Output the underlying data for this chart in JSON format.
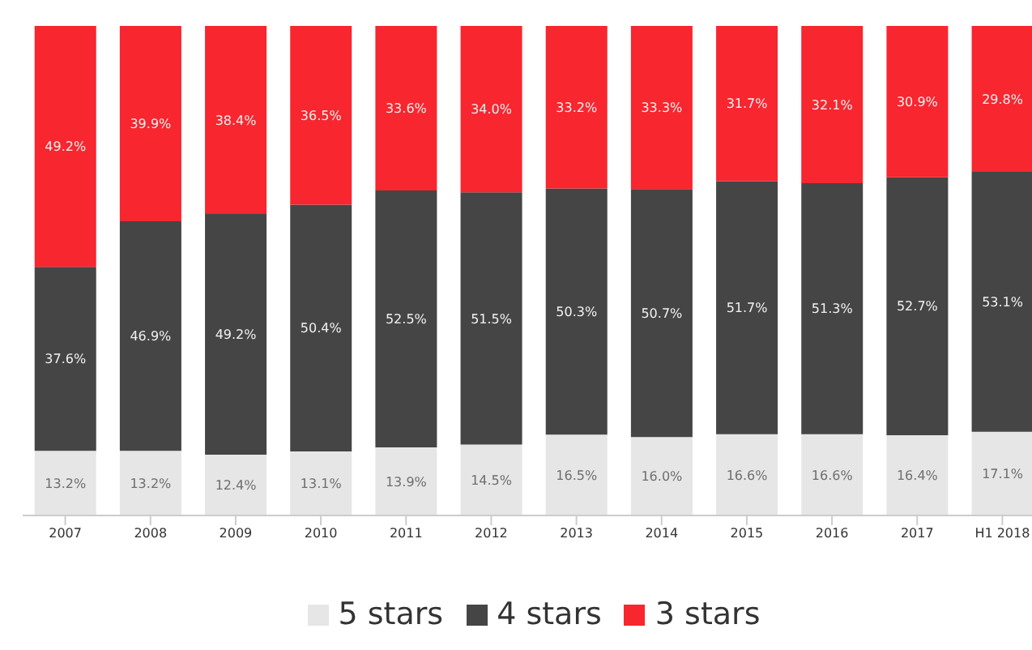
{
  "chart_data": {
    "type": "bar",
    "stacked": true,
    "categories": [
      "2007",
      "2008",
      "2009",
      "2010",
      "2011",
      "2012",
      "2013",
      "2014",
      "2015",
      "2016",
      "2017",
      "H1 2018"
    ],
    "series": [
      {
        "name": "5 stars",
        "color": "#e6e6e6",
        "values": [
          13.2,
          13.2,
          12.4,
          13.1,
          13.9,
          14.5,
          16.5,
          16.0,
          16.6,
          16.6,
          16.4,
          17.1
        ],
        "value_labels": [
          "13.2%",
          "13.2%",
          "12.4%",
          "13.1%",
          "13.9%",
          "14.5%",
          "16.5%",
          "16.0%",
          "16.6%",
          "16.6%",
          "16.4%",
          "17.1%"
        ]
      },
      {
        "name": "4 stars",
        "color": "#454545",
        "values": [
          37.6,
          46.9,
          49.2,
          50.4,
          52.5,
          51.5,
          50.3,
          50.7,
          51.7,
          51.3,
          52.7,
          53.1
        ],
        "value_labels": [
          "37.6%",
          "46.9%",
          "49.2%",
          "50.4%",
          "52.5%",
          "51.5%",
          "50.3%",
          "50.7%",
          "51.7%",
          "51.3%",
          "52.7%",
          "53.1%"
        ]
      },
      {
        "name": "3 stars",
        "color": "#f7262f",
        "values": [
          49.2,
          39.9,
          38.4,
          36.5,
          33.6,
          34.0,
          33.2,
          33.3,
          31.7,
          32.1,
          30.9,
          29.8
        ],
        "value_labels": [
          "49.2%",
          "39.9%",
          "38.4%",
          "36.5%",
          "33.6%",
          "34.0%",
          "33.2%",
          "33.3%",
          "31.7%",
          "32.1%",
          "30.9%",
          "29.8%"
        ]
      }
    ],
    "legend": "bottom",
    "grid": false
  }
}
